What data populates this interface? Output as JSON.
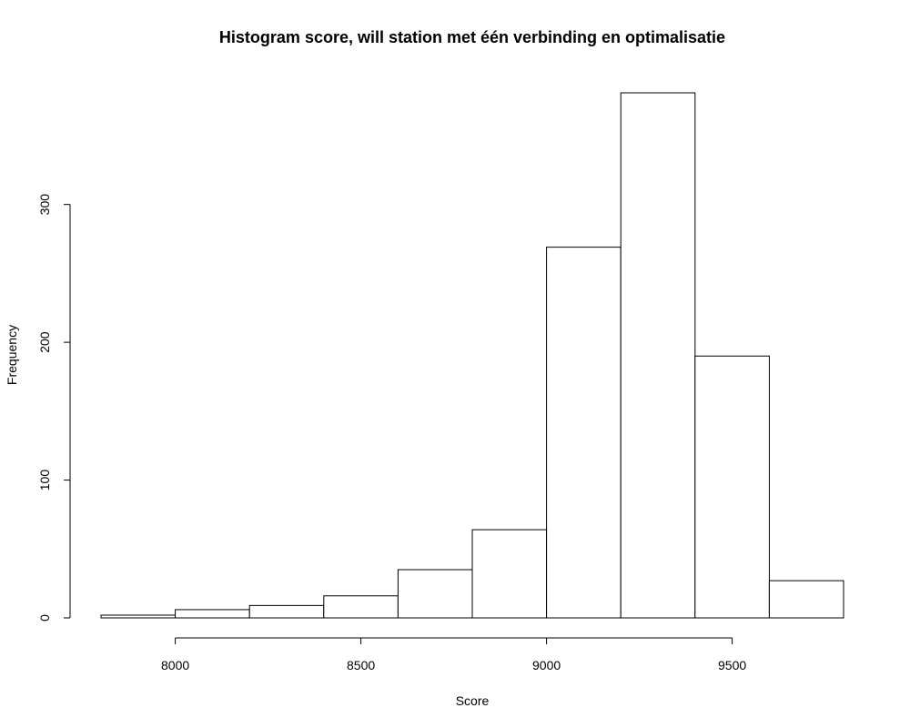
{
  "chart_data": {
    "type": "bar",
    "title": "Histogram score, will station met één verbinding en optimalisatie",
    "xlabel": "Score",
    "ylabel": "Frequency",
    "bins": [
      {
        "start": 7800,
        "end": 8000,
        "count": 2
      },
      {
        "start": 8000,
        "end": 8200,
        "count": 6
      },
      {
        "start": 8200,
        "end": 8400,
        "count": 9
      },
      {
        "start": 8400,
        "end": 8600,
        "count": 16
      },
      {
        "start": 8600,
        "end": 8800,
        "count": 35
      },
      {
        "start": 8800,
        "end": 9000,
        "count": 64
      },
      {
        "start": 9000,
        "end": 9200,
        "count": 269
      },
      {
        "start": 9200,
        "end": 9400,
        "count": 381
      },
      {
        "start": 9400,
        "end": 9600,
        "count": 190
      },
      {
        "start": 9600,
        "end": 9800,
        "count": 27
      }
    ],
    "xticks": [
      8000,
      8500,
      9000,
      9500
    ],
    "yticks": [
      0,
      100,
      200,
      300
    ],
    "xlim": [
      7800,
      9800
    ],
    "ylim": [
      0,
      381
    ],
    "grid": false,
    "bar_fill": "#ffffff",
    "bar_stroke": "#000000"
  }
}
